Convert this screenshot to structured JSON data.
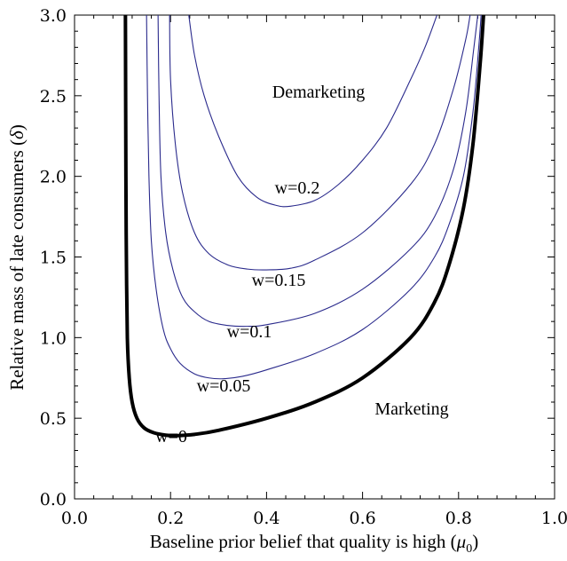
{
  "chart_data": {
    "type": "line",
    "xlabel": "Baseline prior belief that quality is high (μ0)",
    "ylabel": "Relative mass of late consumers (δ)",
    "xlim": [
      0.0,
      1.0
    ],
    "ylim": [
      0.0,
      3.0
    ],
    "x_ticks": [
      "0.0",
      "0.2",
      "0.4",
      "0.6",
      "0.8",
      "1.0"
    ],
    "y_ticks": [
      "0.0",
      "0.5",
      "1.0",
      "1.5",
      "2.0",
      "2.5",
      "3.0"
    ],
    "grid": false,
    "colors": {
      "w0": "#000000",
      "wpos": "#2a2a8c"
    },
    "region_labels": [
      "Demarketing",
      "Marketing"
    ],
    "series": [
      {
        "name": "w=0",
        "emphasis": true,
        "points": [
          [
            0.106,
            3.0
          ],
          [
            0.107,
            2.0
          ],
          [
            0.108,
            1.5
          ],
          [
            0.11,
            1.0
          ],
          [
            0.114,
            0.75
          ],
          [
            0.12,
            0.6
          ],
          [
            0.13,
            0.5
          ],
          [
            0.145,
            0.44
          ],
          [
            0.165,
            0.41
          ],
          [
            0.19,
            0.395
          ],
          [
            0.21,
            0.392
          ],
          [
            0.25,
            0.4
          ],
          [
            0.3,
            0.425
          ],
          [
            0.4,
            0.5
          ],
          [
            0.5,
            0.6
          ],
          [
            0.6,
            0.75
          ],
          [
            0.7,
            1.0
          ],
          [
            0.75,
            1.22
          ],
          [
            0.78,
            1.45
          ],
          [
            0.81,
            1.8
          ],
          [
            0.83,
            2.2
          ],
          [
            0.845,
            2.7
          ],
          [
            0.852,
            3.0
          ]
        ]
      },
      {
        "name": "w=0.05",
        "emphasis": false,
        "points": [
          [
            0.15,
            3.0
          ],
          [
            0.152,
            2.5
          ],
          [
            0.155,
            2.0
          ],
          [
            0.16,
            1.6
          ],
          [
            0.17,
            1.3
          ],
          [
            0.185,
            1.05
          ],
          [
            0.2,
            0.93
          ],
          [
            0.22,
            0.84
          ],
          [
            0.25,
            0.775
          ],
          [
            0.28,
            0.75
          ],
          [
            0.31,
            0.745
          ],
          [
            0.35,
            0.76
          ],
          [
            0.4,
            0.8
          ],
          [
            0.5,
            0.9
          ],
          [
            0.6,
            1.05
          ],
          [
            0.7,
            1.3
          ],
          [
            0.75,
            1.5
          ],
          [
            0.78,
            1.7
          ],
          [
            0.81,
            2.0
          ],
          [
            0.83,
            2.4
          ],
          [
            0.842,
            2.8
          ],
          [
            0.847,
            3.0
          ]
        ]
      },
      {
        "name": "w=0.1",
        "emphasis": false,
        "points": [
          [
            0.174,
            3.0
          ],
          [
            0.176,
            2.5
          ],
          [
            0.18,
            2.0
          ],
          [
            0.19,
            1.65
          ],
          [
            0.205,
            1.42
          ],
          [
            0.225,
            1.25
          ],
          [
            0.25,
            1.16
          ],
          [
            0.28,
            1.1
          ],
          [
            0.32,
            1.075
          ],
          [
            0.36,
            1.07
          ],
          [
            0.4,
            1.08
          ],
          [
            0.5,
            1.15
          ],
          [
            0.6,
            1.3
          ],
          [
            0.7,
            1.55
          ],
          [
            0.75,
            1.75
          ],
          [
            0.79,
            2.05
          ],
          [
            0.815,
            2.4
          ],
          [
            0.832,
            2.8
          ],
          [
            0.84,
            3.0
          ]
        ]
      },
      {
        "name": "w=0.15",
        "emphasis": false,
        "points": [
          [
            0.198,
            3.0
          ],
          [
            0.2,
            2.6
          ],
          [
            0.21,
            2.2
          ],
          [
            0.225,
            1.9
          ],
          [
            0.25,
            1.65
          ],
          [
            0.28,
            1.52
          ],
          [
            0.32,
            1.45
          ],
          [
            0.36,
            1.425
          ],
          [
            0.4,
            1.42
          ],
          [
            0.45,
            1.43
          ],
          [
            0.5,
            1.48
          ],
          [
            0.6,
            1.65
          ],
          [
            0.7,
            1.95
          ],
          [
            0.75,
            2.2
          ],
          [
            0.79,
            2.55
          ],
          [
            0.815,
            2.85
          ],
          [
            0.824,
            3.0
          ]
        ]
      },
      {
        "name": "w=0.2",
        "emphasis": false,
        "points": [
          [
            0.238,
            3.0
          ],
          [
            0.25,
            2.75
          ],
          [
            0.27,
            2.5
          ],
          [
            0.3,
            2.25
          ],
          [
            0.34,
            2.0
          ],
          [
            0.38,
            1.87
          ],
          [
            0.42,
            1.82
          ],
          [
            0.45,
            1.815
          ],
          [
            0.5,
            1.85
          ],
          [
            0.55,
            1.95
          ],
          [
            0.6,
            2.1
          ],
          [
            0.65,
            2.3
          ],
          [
            0.7,
            2.6
          ],
          [
            0.73,
            2.8
          ],
          [
            0.755,
            3.0
          ]
        ]
      }
    ]
  }
}
